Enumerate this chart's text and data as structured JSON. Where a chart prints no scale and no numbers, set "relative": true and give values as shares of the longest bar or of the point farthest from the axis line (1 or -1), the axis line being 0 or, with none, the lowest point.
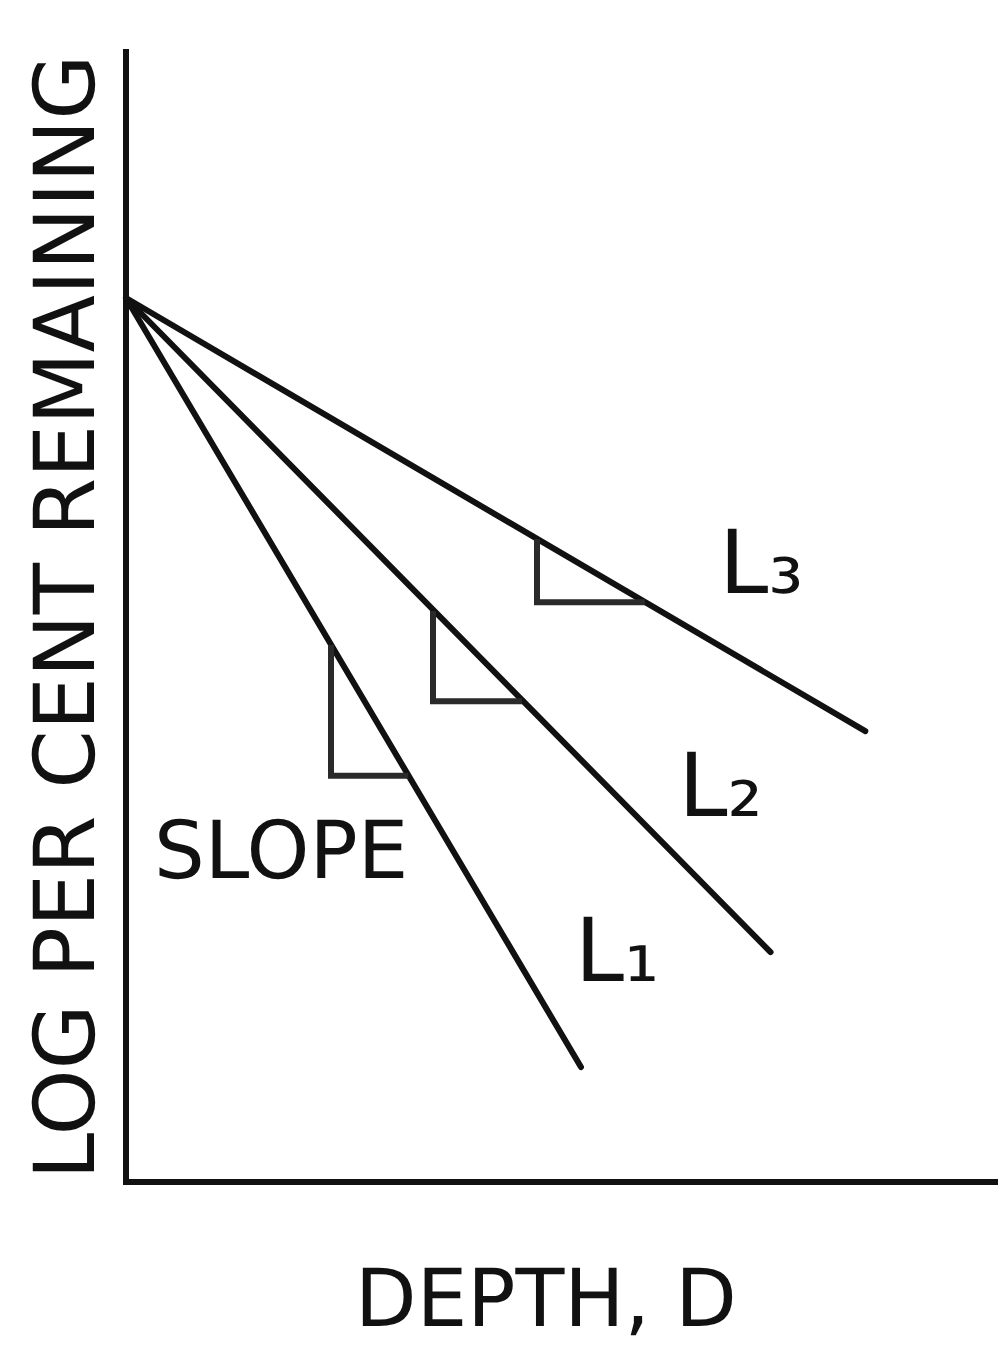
{
  "chart_data": {
    "type": "line",
    "xlabel": "DEPTH, D",
    "ylabel": "LOG PER CENT REMAINING",
    "annotations": [
      "SLOPE"
    ],
    "categories": [
      null,
      null,
      null,
      null,
      null,
      null,
      null,
      null,
      null,
      null,
      null,
      null,
      null,
      null,
      null,
      null,
      null,
      null,
      null,
      null,
      null,
      null,
      null,
      null,
      null,
      null,
      null,
      null,
      null,
      null,
      null,
      null,
      null,
      null,
      null,
      null,
      null,
      null,
      null,
      null,
      null,
      null,
      null,
      null,
      null,
      null,
      null
    ],
    "relative": true,
    "marker": "none",
    "line_style": "solid",
    "series": [
      {
        "name": "L₁",
        "color": "#111111",
        "values": [
          1,
          null,
          null,
          null,
          null,
          null,
          null,
          null,
          null,
          null,
          null,
          null,
          null,
          null,
          null,
          null,
          null,
          null,
          null,
          null,
          null,
          null,
          null,
          null,
          0.13,
          null,
          null,
          null,
          null,
          null,
          null,
          null,
          null,
          null,
          null,
          null,
          null,
          null,
          null,
          null,
          null,
          null,
          null,
          null,
          null,
          null,
          null
        ]
      },
      {
        "name": "L₂",
        "color": "#111111",
        "values": [
          1,
          null,
          null,
          null,
          null,
          null,
          null,
          null,
          null,
          null,
          null,
          null,
          null,
          null,
          null,
          null,
          null,
          null,
          null,
          null,
          null,
          null,
          null,
          null,
          null,
          null,
          null,
          null,
          null,
          null,
          null,
          null,
          null,
          null,
          0.26,
          null,
          null,
          null,
          null,
          null,
          null,
          null,
          null,
          null,
          null,
          null,
          null
        ]
      },
      {
        "name": "L₃",
        "color": "#111111",
        "values": [
          1,
          null,
          null,
          null,
          null,
          null,
          null,
          null,
          null,
          null,
          null,
          null,
          null,
          null,
          null,
          null,
          null,
          null,
          null,
          null,
          null,
          null,
          null,
          null,
          null,
          null,
          null,
          null,
          null,
          null,
          null,
          null,
          null,
          null,
          null,
          null,
          null,
          null,
          null,
          0.51,
          null,
          null,
          null,
          null,
          null,
          null,
          null
        ]
      }
    ]
  }
}
